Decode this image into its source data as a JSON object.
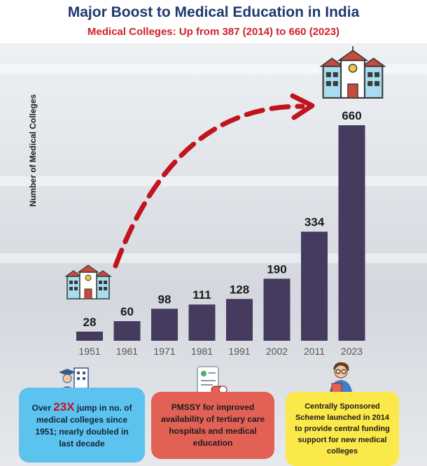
{
  "header": {
    "title": "Major Boost to Medical Education in India",
    "subtitle": "Medical Colleges: Up from 387 (2014) to 660 (2023)"
  },
  "chart_data": {
    "type": "bar",
    "title": "Major Boost to Medical Education in India",
    "subtitle": "Medical Colleges: Up from 387 (2014) to 660 (2023)",
    "xlabel": "",
    "ylabel": "Number of Medical Colleges",
    "categories": [
      "1951",
      "1961",
      "1971",
      "1981",
      "1991",
      "2002",
      "2011",
      "2023"
    ],
    "values": [
      28,
      60,
      98,
      111,
      128,
      190,
      334,
      660
    ],
    "ylim": [
      0,
      660
    ],
    "grid": false,
    "bar_color": "#453b5e",
    "arrow_color": "#c0141e"
  },
  "callouts": {
    "blue": {
      "pre": "Over ",
      "highlight": "23X",
      "post": " jump in no. of medical colleges since 1951; nearly doubled in last decade"
    },
    "red": {
      "text": "PMSSY for improved availability of tertiary care hospitals and medical education"
    },
    "yellow": {
      "text": "Centrally Sponsored Scheme launched in 2014 to provide central funding support for new medical colleges"
    }
  },
  "colors": {
    "title": "#1f3a6e",
    "subtitle": "#d0202a",
    "blue": "#5cc2ee",
    "red": "#e36055",
    "yellow": "#fbe94a"
  },
  "icons": [
    "college-building-icon",
    "graduate-icon",
    "medical-report-icon",
    "student-icon"
  ]
}
